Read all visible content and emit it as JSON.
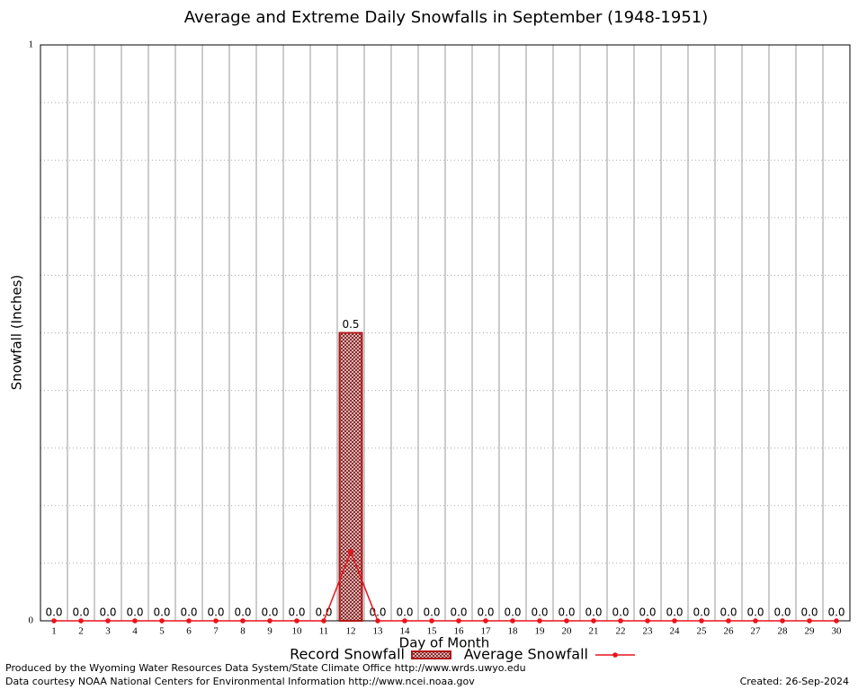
{
  "chart_data": {
    "type": "bar",
    "title": "Average and Extreme Daily Snowfalls in September (1948-1951)",
    "x_label": "Day of Month",
    "y_label": "Snowfall (Inches)",
    "categories": [
      "1",
      "2",
      "3",
      "4",
      "5",
      "6",
      "7",
      "8",
      "9",
      "10",
      "11",
      "12",
      "13",
      "14",
      "15",
      "16",
      "17",
      "18",
      "19",
      "20",
      "21",
      "22",
      "23",
      "24",
      "25",
      "26",
      "27",
      "28",
      "29",
      "30"
    ],
    "series": [
      {
        "name": "Record Snowfall",
        "type": "bar",
        "color": "#b01818",
        "values": [
          0,
          0,
          0,
          0,
          0,
          0,
          0,
          0,
          0,
          0,
          0,
          0.5,
          0,
          0,
          0,
          0,
          0,
          0,
          0,
          0,
          0,
          0,
          0,
          0,
          0,
          0,
          0,
          0,
          0,
          0
        ],
        "value_labels": [
          "0.0",
          "0.0",
          "0.0",
          "0.0",
          "0.0",
          "0.0",
          "0.0",
          "0.0",
          "0.0",
          "0.0",
          "0.0",
          "0.5",
          "0.0",
          "0.0",
          "0.0",
          "0.0",
          "0.0",
          "0.0",
          "0.0",
          "0.0",
          "0.0",
          "0.0",
          "0.0",
          "0.0",
          "0.0",
          "0.0",
          "0.0",
          "0.0",
          "0.0",
          "0.0"
        ]
      },
      {
        "name": "Average Snowfall",
        "type": "line",
        "color": "#e8141c",
        "values": [
          0,
          0,
          0,
          0,
          0,
          0,
          0,
          0,
          0,
          0,
          0,
          0.12,
          0,
          0,
          0,
          0,
          0,
          0,
          0,
          0,
          0,
          0,
          0,
          0,
          0,
          0,
          0,
          0,
          0,
          0
        ]
      }
    ],
    "ylim": [
      0,
      1
    ],
    "yticks": [
      0,
      1
    ],
    "minor_yticks": [
      0.1,
      0.2,
      0.3,
      0.4,
      0.5,
      0.6,
      0.7,
      0.8,
      0.9
    ],
    "grid": true
  },
  "footer": {
    "produced_by": "Produced by the Wyoming Water Resources Data System/State Climate Office http://www.wrds.uwyo.edu",
    "data_courtesy": "Data courtesy NOAA National Centers for Environmental Information http://www.ncei.noaa.gov",
    "created": "Created:  26-Sep-2024"
  }
}
